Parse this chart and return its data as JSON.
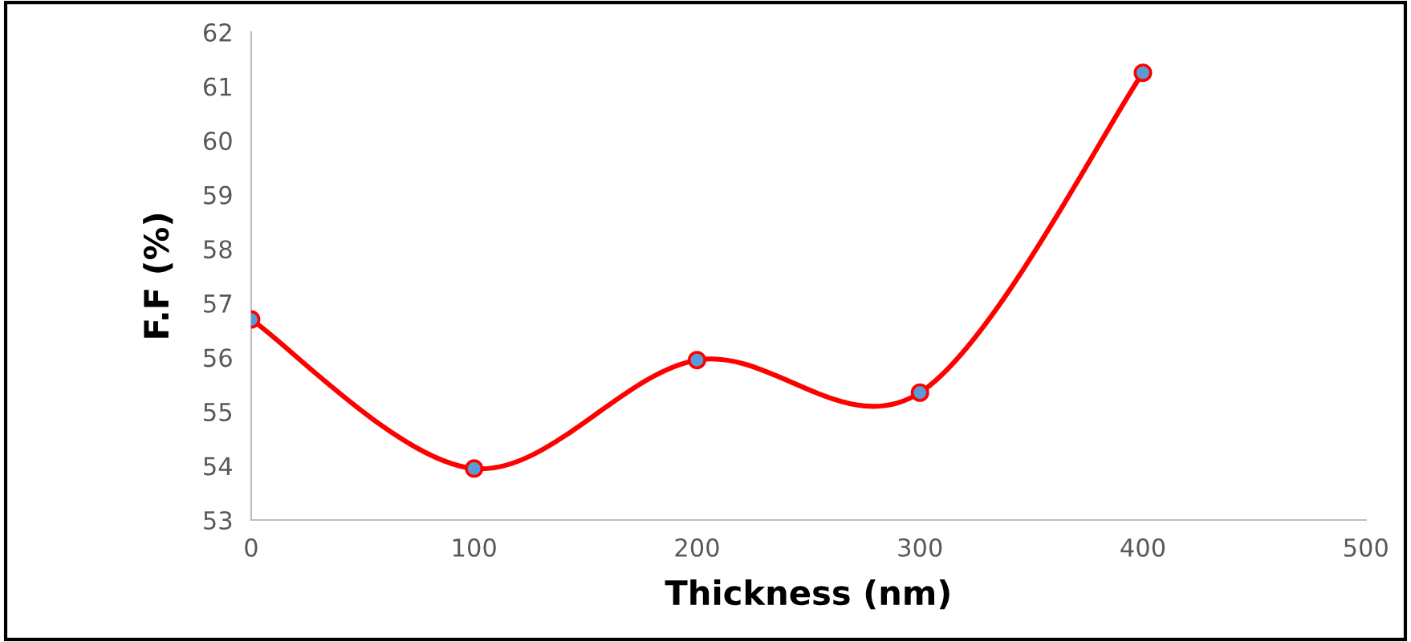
{
  "chart_data": {
    "type": "line",
    "xlabel": "Thickness (nm)",
    "ylabel": "F.F (%)",
    "x": [
      0,
      100,
      200,
      300,
      400
    ],
    "series": [
      {
        "color": "#ff0000",
        "values": [
          56.7,
          53.95,
          55.95,
          55.35,
          61.25
        ]
      }
    ],
    "xlim": [
      0,
      500
    ],
    "xticks": [
      0,
      100,
      200,
      300,
      400,
      500
    ],
    "ylim": [
      53,
      62
    ],
    "yticks": [
      53,
      54,
      55,
      56,
      57,
      58,
      59,
      60,
      61,
      62
    ],
    "grid": false,
    "legend": false,
    "marker": "circle",
    "line_style": "solid"
  }
}
